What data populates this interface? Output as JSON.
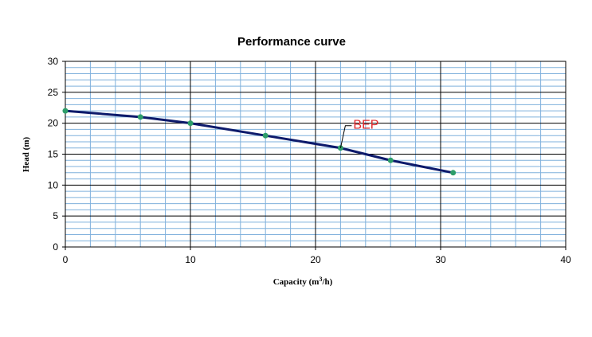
{
  "chart_data": {
    "type": "line",
    "title": "Performance curve",
    "xlabel": "Capacity  (m³/h)",
    "ylabel": "Head  (m)",
    "xlim": [
      0,
      40
    ],
    "ylim": [
      0,
      30
    ],
    "x_ticks": [
      "0",
      "10",
      "20",
      "30",
      "40"
    ],
    "y_ticks": [
      "0",
      "5",
      "10",
      "15",
      "20",
      "25",
      "30"
    ],
    "x_major_step": 10,
    "x_minor_step": 2,
    "y_major_step": 5,
    "y_minor_step": 1,
    "grid": true,
    "series": [
      {
        "x": [
          0,
          6,
          10,
          16,
          22,
          26,
          31
        ],
        "y": [
          22,
          21,
          20,
          18,
          16,
          14,
          12
        ],
        "line_color": "#0d1a6b",
        "marker_color": "#2e9e6a"
      }
    ],
    "annotation": {
      "text": "BEP",
      "x": 22,
      "y": 16,
      "color": "#e0272b"
    },
    "colors": {
      "minor_grid": "#7fb0dc",
      "major_grid": "#000000"
    }
  }
}
